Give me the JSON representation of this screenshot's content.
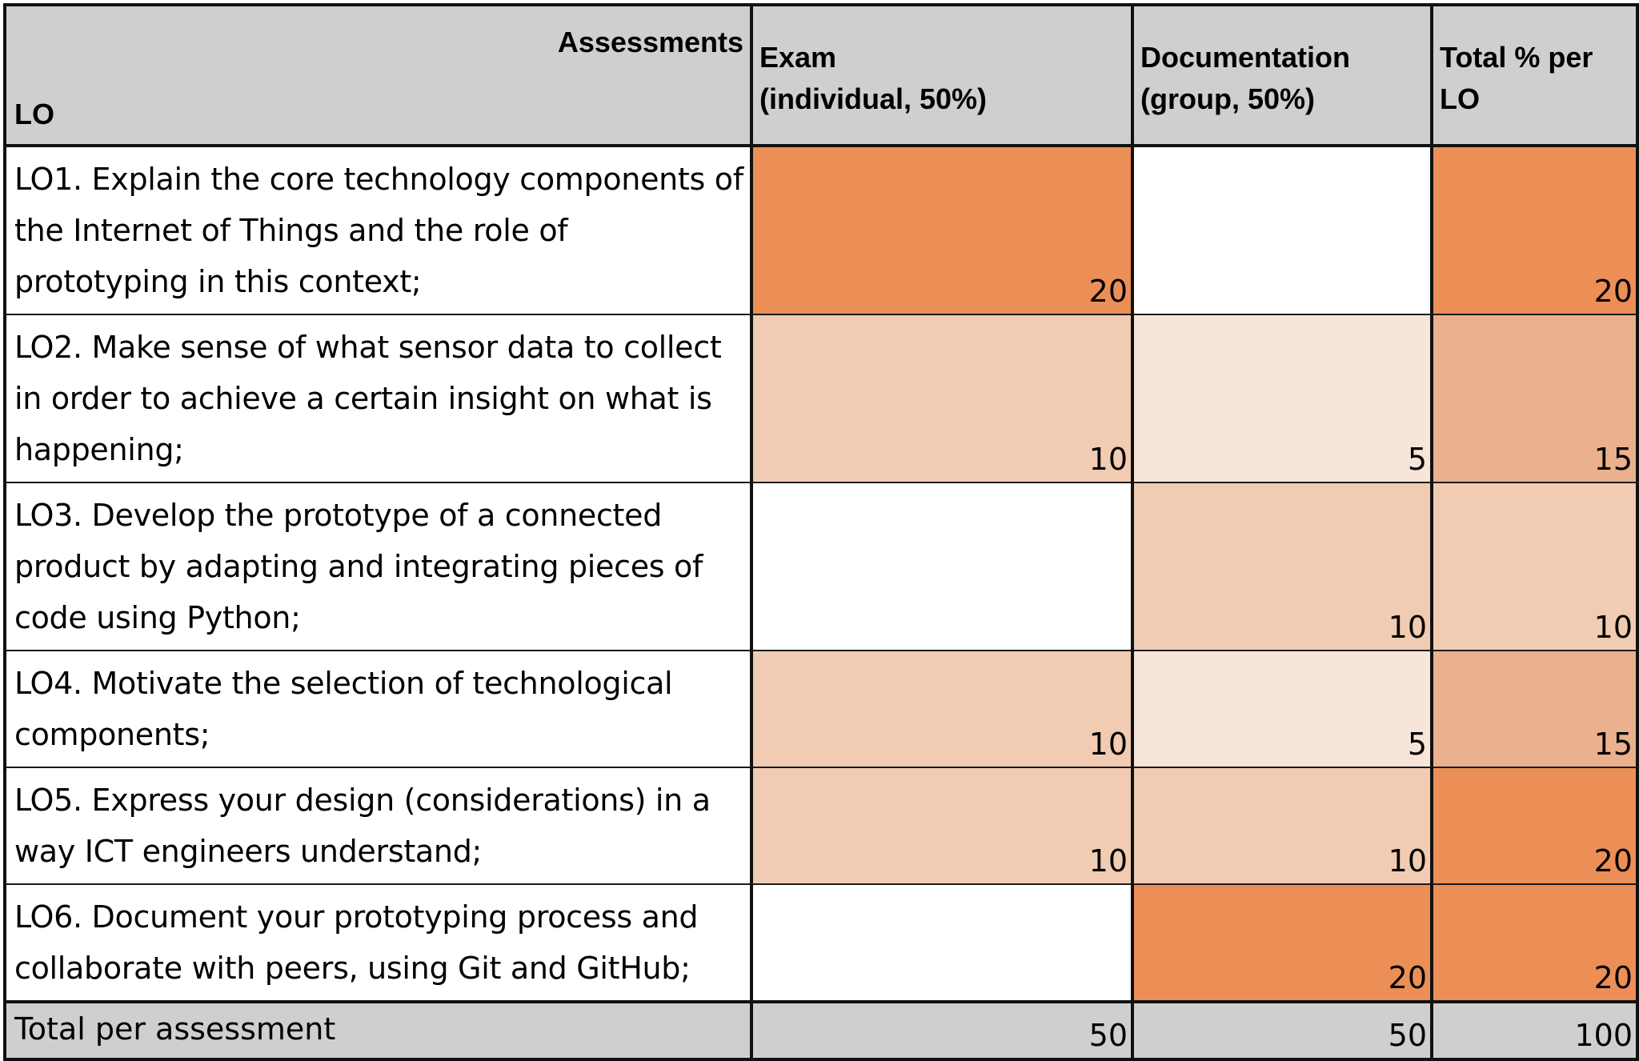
{
  "header": {
    "assessments_label": "Assessments",
    "lo_label": "LO",
    "col_exam": "Exam\n(individual, 50%)",
    "col_doc": "Documentation\n(group, 50%)",
    "col_total": "Total % per\nLO"
  },
  "colors": {
    "header_bg": "#d0cfd0",
    "strong": "#ec8f57",
    "medium": "#f1ccb2",
    "light": "#f7e5d9",
    "mid_strong": "#ebb08d",
    "white": "#ffffff"
  },
  "rows": [
    {
      "text": "LO1. Explain the core technology components of the Internet of Things and the role of prototyping in this context;",
      "exam": "20",
      "doc": "",
      "total": "20",
      "exam_color": "#ec8f57",
      "doc_color": "#ffffff",
      "total_color": "#ec8f57"
    },
    {
      "text": "LO2. Make sense of what sensor data to collect in order to achieve a certain insight on what is happening;",
      "exam": "10",
      "doc": "5",
      "total": "15",
      "exam_color": "#f1ccb2",
      "doc_color": "#f7e5d9",
      "total_color": "#ebb08d"
    },
    {
      "text": "LO3. Develop the prototype of a connected product by adapting and integrating pieces of code using Python;",
      "exam": "",
      "doc": "10",
      "total": "10",
      "exam_color": "#ffffff",
      "doc_color": "#f1ccb2",
      "total_color": "#f1ccb2"
    },
    {
      "text": "LO4. Motivate the selection of technological components;",
      "exam": "10",
      "doc": "5",
      "total": "15",
      "exam_color": "#f1ccb2",
      "doc_color": "#f7e5d9",
      "total_color": "#ebb08d"
    },
    {
      "text": "LO5. Express your design (considerations) in a way ICT engineers understand;",
      "exam": "10",
      "doc": "10",
      "total": "20",
      "exam_color": "#f1ccb2",
      "doc_color": "#f1ccb2",
      "total_color": "#ec8f57"
    },
    {
      "text": "LO6. Document your prototyping process and collaborate with peers, using Git and GitHub;",
      "exam": "",
      "doc": "20",
      "total": "20",
      "exam_color": "#ffffff",
      "doc_color": "#ec8f57",
      "total_color": "#ec8f57"
    }
  ],
  "total_row": {
    "label": "Total per assessment",
    "exam": "50",
    "doc": "50",
    "total": "100"
  }
}
